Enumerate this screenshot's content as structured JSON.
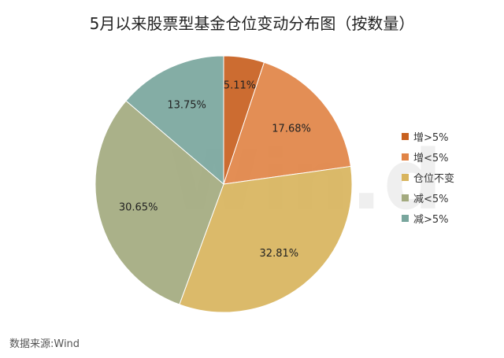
{
  "chart_data": {
    "type": "pie",
    "title": "5月以来股票型基金仓位变动分布图（按数量）",
    "categories": [
      "增>5%",
      "增<5%",
      "仓位不变",
      "减<5%",
      "减>5%"
    ],
    "values": [
      5.11,
      17.68,
      32.81,
      30.65,
      13.75
    ],
    "value_labels": [
      "5.11%",
      "17.68%",
      "32.81%",
      "30.65%",
      "13.75%"
    ],
    "colors": [
      "#c8601f",
      "#e18446",
      "#d8b45d",
      "#a3aa7f",
      "#79a69d"
    ],
    "legend_position": "right"
  },
  "watermark": "Win.d",
  "source": "数据来源:Wind"
}
